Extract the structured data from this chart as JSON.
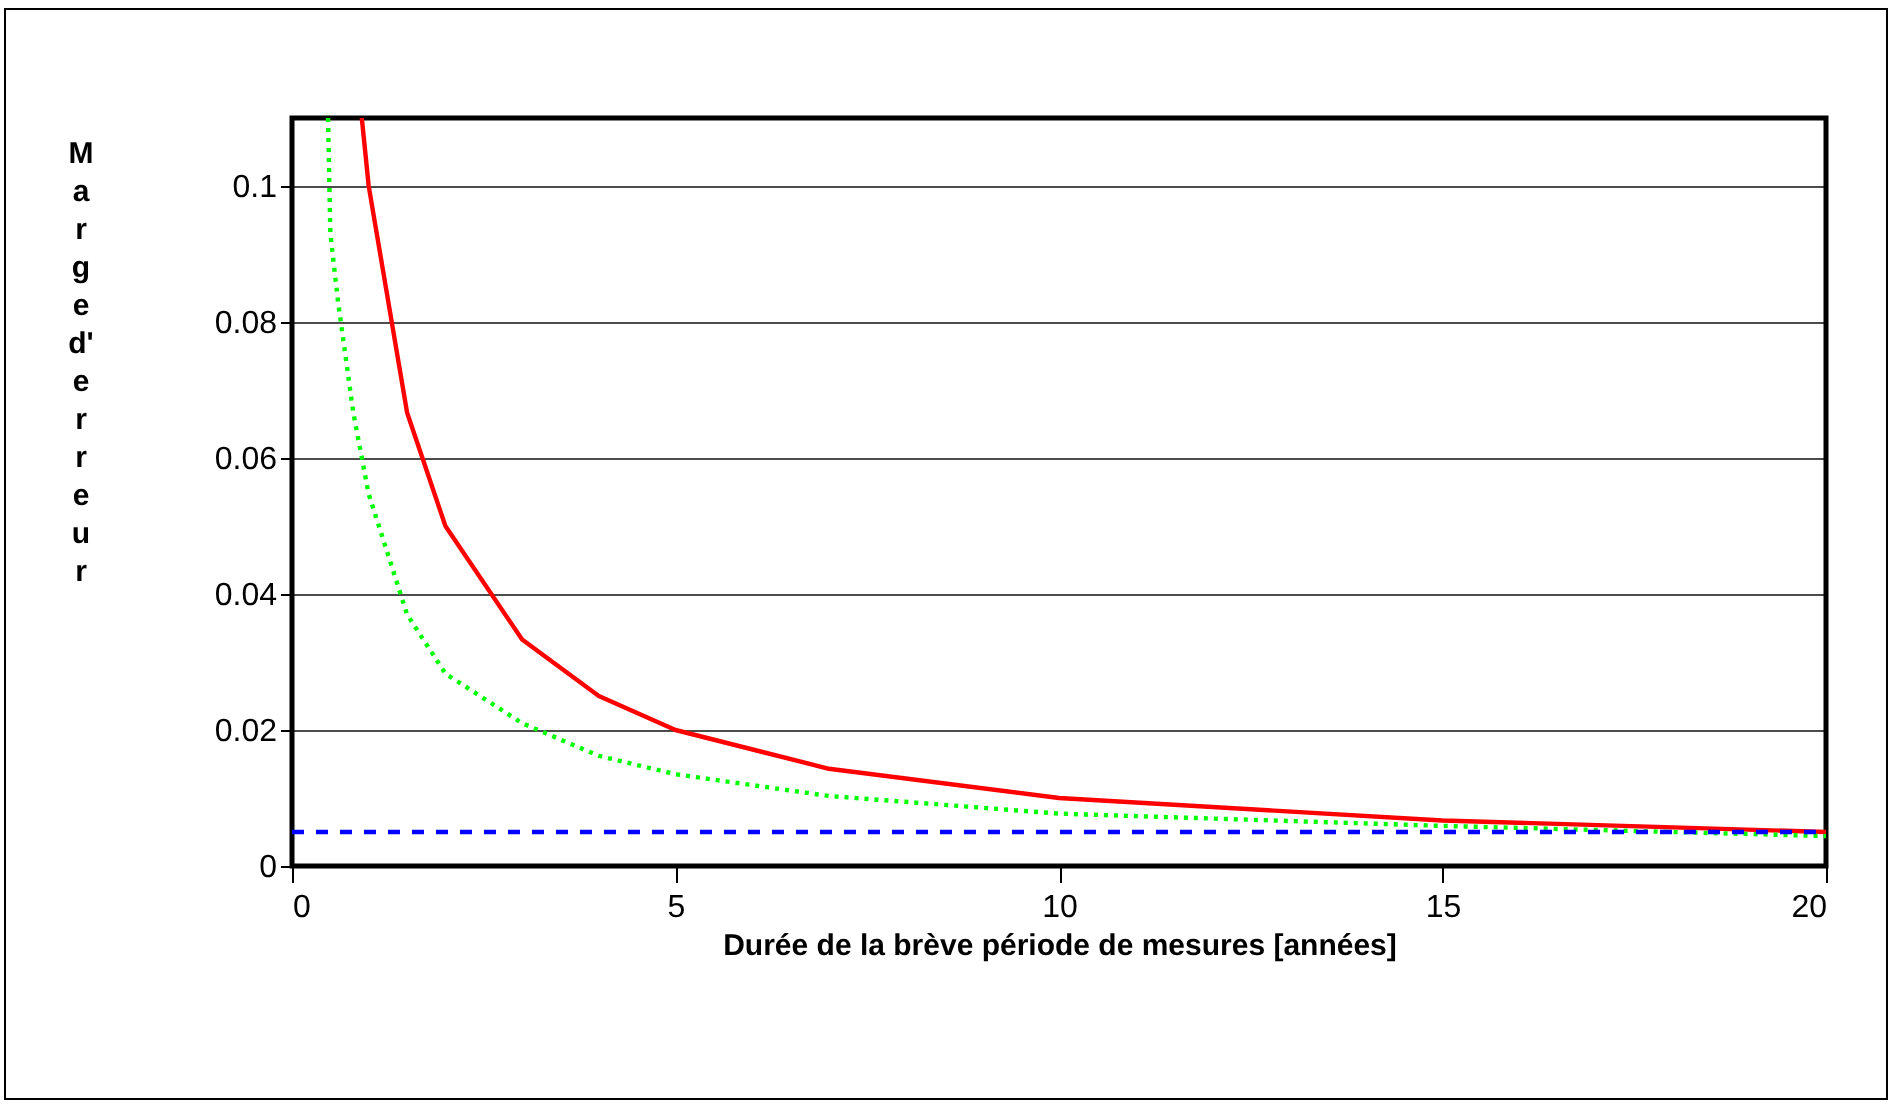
{
  "chart_data": {
    "type": "line",
    "xlabel": "Durée de la brève période de mesures [années]",
    "ylabel": "Marge d'erreur",
    "xlim": [
      0,
      20
    ],
    "xticks": [
      0,
      5,
      10,
      15,
      20
    ],
    "ylim": [
      0,
      0.11
    ],
    "yticks": [
      0,
      0.02,
      0.04,
      0.06,
      0.08,
      0.1
    ],
    "grid": "y",
    "series": [
      {
        "color": "#ff0000",
        "line_style": "solid",
        "x": [
          0.91,
          1,
          1.5,
          2,
          3,
          4,
          5,
          7,
          10,
          15,
          20
        ],
        "values": [
          0.11,
          0.1,
          0.0667,
          0.05,
          0.0333,
          0.025,
          0.02,
          0.0143,
          0.01,
          0.0067,
          0.005
        ]
      },
      {
        "color": "#00ff00",
        "line_style": "dotted",
        "x": [
          0.47,
          0.5,
          0.6,
          0.8,
          1,
          1.5,
          2,
          3,
          4,
          5,
          7,
          10,
          15,
          20
        ],
        "values": [
          0.11,
          0.093,
          0.083,
          0.0666,
          0.0547,
          0.037,
          0.0283,
          0.021,
          0.0162,
          0.0135,
          0.0103,
          0.0077,
          0.0059,
          0.0044
        ]
      },
      {
        "color": "#0000ff",
        "line_style": "dashed",
        "x": [
          0,
          20
        ],
        "values": [
          0.005,
          0.005
        ]
      }
    ]
  }
}
